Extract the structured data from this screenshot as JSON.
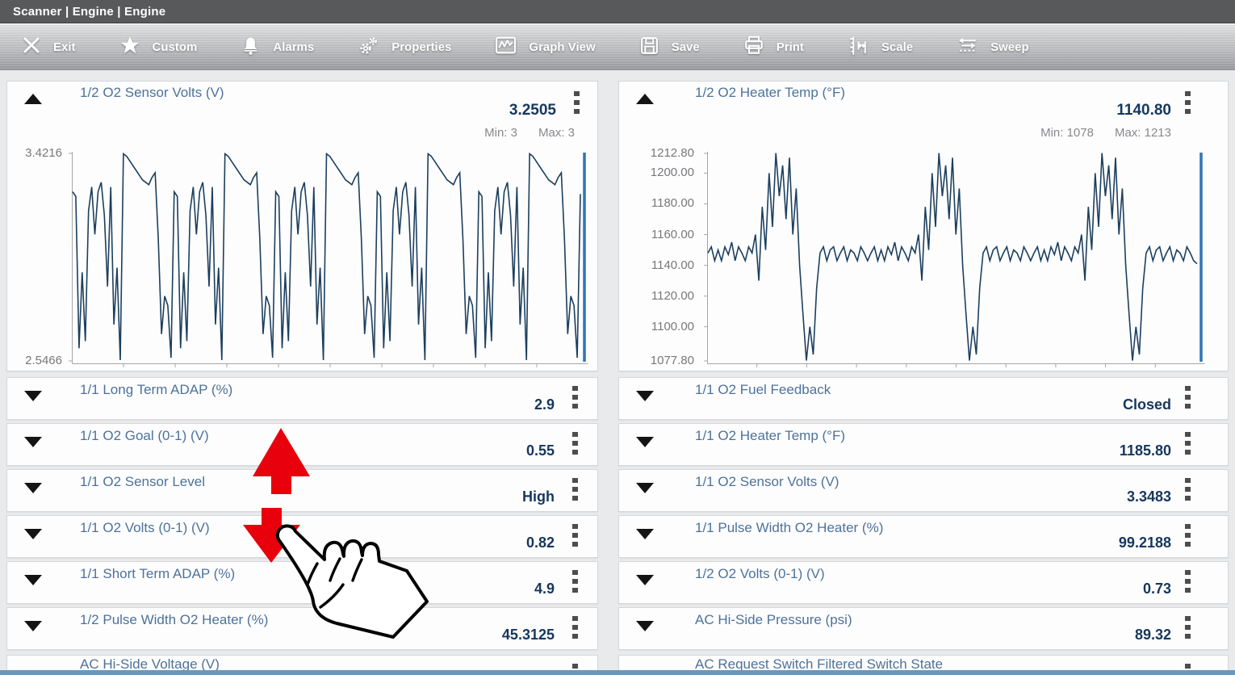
{
  "breadcrumb": "Scanner | Engine | Engine",
  "toolbar": {
    "items": [
      {
        "name": "exit",
        "label": "Exit"
      },
      {
        "name": "custom",
        "label": "Custom"
      },
      {
        "name": "alarms",
        "label": "Alarms"
      },
      {
        "name": "properties",
        "label": "Properties"
      },
      {
        "name": "graph-view",
        "label": "Graph View"
      },
      {
        "name": "save",
        "label": "Save"
      },
      {
        "name": "print",
        "label": "Print"
      },
      {
        "name": "scale",
        "label": "Scale"
      },
      {
        "name": "sweep",
        "label": "Sweep"
      }
    ]
  },
  "left_graph": {
    "title": "1/2 O2 Sensor Volts (V)",
    "value": "3.2505",
    "min": "Min: 3",
    "max": "Max: 3"
  },
  "right_graph": {
    "title": "1/2 O2 Heater Temp (°F)",
    "value": "1140.80",
    "min": "Min: 1078",
    "max": "Max: 1213"
  },
  "left_rows": [
    {
      "title": "1/1 Long Term ADAP (%)",
      "value": "2.9"
    },
    {
      "title": "1/1 O2 Goal (0-1) (V)",
      "value": "0.55"
    },
    {
      "title": "1/1 O2 Sensor Level",
      "value": "High"
    },
    {
      "title": "1/1 O2 Volts (0-1) (V)",
      "value": "0.82"
    },
    {
      "title": "1/1 Short Term ADAP (%)",
      "value": "4.9"
    },
    {
      "title": "1/2 Pulse Width O2 Heater (%)",
      "value": "45.3125"
    },
    {
      "title": "AC Hi-Side Voltage (V)",
      "value": ""
    }
  ],
  "right_rows": [
    {
      "title": "1/1 O2 Fuel Feedback",
      "value": "Closed"
    },
    {
      "title": "1/1 O2 Heater Temp (°F)",
      "value": "1185.80"
    },
    {
      "title": "1/1 O2 Sensor Volts (V)",
      "value": "3.3483"
    },
    {
      "title": "1/1 Pulse Width O2 Heater (%)",
      "value": "99.2188"
    },
    {
      "title": "1/2 O2 Volts (0-1) (V)",
      "value": "0.73"
    },
    {
      "title": "AC Hi-Side Pressure (psi)",
      "value": "89.32"
    },
    {
      "title": "AC Request Switch Filtered Switch State",
      "value": ""
    }
  ],
  "colors": {
    "topbar_bg": "#58595b",
    "toolbar_text": "#ffffff",
    "title_blue": "#4d7299",
    "value_navy": "#16375d",
    "muted_gray": "#88898b",
    "graph_line": "#1c3f5e",
    "cursor_blue": "#2e75b5",
    "arrow_red": "#e8000d",
    "bottom_strip": "#6b97ba"
  },
  "chart_data": [
    {
      "type": "line",
      "title": "1/2 O2 Sensor Volts (V)",
      "current": 3.2505,
      "min": 3,
      "max": 3,
      "ylim": [
        2.5466,
        3.4216
      ],
      "yticks": [
        {
          "label": "3.4216",
          "v": 3.4216
        },
        {
          "label": "2.5466",
          "v": 2.5466
        }
      ],
      "values": [
        3.26,
        3.24,
        2.6,
        2.92,
        2.63,
        3.18,
        3.28,
        3.08,
        3.26,
        3.3,
        3.16,
        2.86,
        3.28,
        2.7,
        2.94,
        2.55,
        3.42,
        3.41,
        3.39,
        3.37,
        3.35,
        3.33,
        3.31,
        3.3,
        3.29,
        3.32,
        3.34,
        3.06,
        2.66,
        2.82,
        2.78,
        2.56,
        3.26,
        3.24,
        2.6,
        2.92,
        2.63,
        3.18,
        3.28,
        3.08,
        3.26,
        3.3,
        3.16,
        2.86,
        3.28,
        2.7,
        2.94,
        2.55,
        3.42,
        3.41,
        3.39,
        3.37,
        3.35,
        3.33,
        3.31,
        3.3,
        3.29,
        3.32,
        3.34,
        3.06,
        2.66,
        2.82,
        2.78,
        2.56,
        3.26,
        3.24,
        2.6,
        2.92,
        2.63,
        3.18,
        3.28,
        3.08,
        3.26,
        3.3,
        3.16,
        2.86,
        3.28,
        2.7,
        2.94,
        2.55,
        3.42,
        3.41,
        3.39,
        3.37,
        3.35,
        3.33,
        3.31,
        3.3,
        3.29,
        3.32,
        3.34,
        3.06,
        2.66,
        2.82,
        2.78,
        2.56,
        3.26,
        3.24,
        2.6,
        2.92,
        2.63,
        3.18,
        3.28,
        3.08,
        3.26,
        3.3,
        3.16,
        2.86,
        3.28,
        2.7,
        2.94,
        2.55,
        3.42,
        3.41,
        3.39,
        3.37,
        3.35,
        3.33,
        3.31,
        3.3,
        3.29,
        3.32,
        3.34,
        3.06,
        2.66,
        2.82,
        2.78,
        2.56,
        3.26,
        3.24,
        2.6,
        2.92,
        2.63,
        3.18,
        3.28,
        3.08,
        3.26,
        3.3,
        3.16,
        2.86,
        3.28,
        2.7,
        2.94,
        2.55,
        3.42,
        3.41,
        3.39,
        3.37,
        3.35,
        3.33,
        3.31,
        3.3,
        3.29,
        3.32,
        3.34,
        3.06,
        2.66,
        2.82,
        2.78,
        2.56,
        3.25
      ]
    },
    {
      "type": "line",
      "title": "1/2 O2 Heater Temp (°F)",
      "current": 1140.8,
      "min": 1078,
      "max": 1213,
      "ylim": [
        1077.8,
        1212.8
      ],
      "yticks": [
        {
          "label": "1212.80",
          "v": 1212.8
        },
        {
          "label": "1200.00",
          "v": 1200
        },
        {
          "label": "1180.00",
          "v": 1180
        },
        {
          "label": "1160.00",
          "v": 1160
        },
        {
          "label": "1140.00",
          "v": 1140
        },
        {
          "label": "1120.00",
          "v": 1120
        },
        {
          "label": "1100.00",
          "v": 1100
        },
        {
          "label": "1077.80",
          "v": 1077.8
        }
      ],
      "values": [
        1148,
        1152,
        1143,
        1150,
        1143,
        1152,
        1147,
        1155,
        1143,
        1152,
        1148,
        1143,
        1152,
        1148,
        1160,
        1130,
        1178,
        1150,
        1200,
        1165,
        1213,
        1185,
        1205,
        1170,
        1210,
        1160,
        1190,
        1140,
        1108,
        1078,
        1100,
        1082,
        1125,
        1148,
        1152,
        1143,
        1150,
        1152,
        1143,
        1148,
        1152,
        1143,
        1150,
        1148,
        1143,
        1152,
        1148,
        1143,
        1148,
        1152,
        1143,
        1150,
        1143,
        1152,
        1147,
        1155,
        1143,
        1152,
        1148,
        1143,
        1152,
        1148,
        1160,
        1130,
        1178,
        1150,
        1200,
        1165,
        1213,
        1185,
        1205,
        1170,
        1210,
        1160,
        1190,
        1140,
        1108,
        1078,
        1100,
        1082,
        1125,
        1148,
        1152,
        1143,
        1150,
        1152,
        1143,
        1148,
        1152,
        1143,
        1150,
        1148,
        1143,
        1152,
        1148,
        1143,
        1148,
        1152,
        1143,
        1150,
        1143,
        1152,
        1147,
        1155,
        1143,
        1152,
        1148,
        1143,
        1152,
        1148,
        1160,
        1130,
        1178,
        1150,
        1200,
        1165,
        1213,
        1185,
        1205,
        1170,
        1210,
        1160,
        1190,
        1140,
        1108,
        1078,
        1100,
        1082,
        1125,
        1148,
        1152,
        1143,
        1150,
        1152,
        1143,
        1148,
        1152,
        1143,
        1150,
        1148,
        1143,
        1152,
        1148,
        1143,
        1141
      ]
    }
  ]
}
